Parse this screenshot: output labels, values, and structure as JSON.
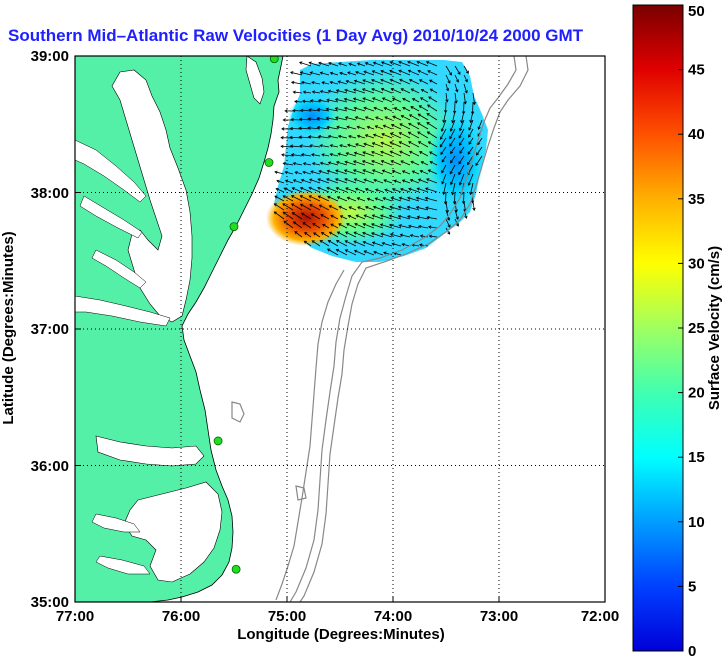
{
  "title": "Southern Mid–Atlantic Raw Velocities (1 Day Avg) 2010/10/24 2000 GMT",
  "axes": {
    "xlabel": "Longitude (Degrees:Minutes)",
    "ylabel": "Latitude (Degrees:Minutes)",
    "x_ticks": [
      "77:00",
      "76:00",
      "75:00",
      "74:00",
      "73:00",
      "72:00"
    ],
    "y_ticks": [
      "39:00",
      "38:00",
      "37:00",
      "36:00",
      "35:00"
    ],
    "x_range": [
      -77.0,
      -72.0
    ],
    "y_range": [
      35.0,
      39.0
    ],
    "grid": "dotted"
  },
  "colorbar": {
    "label": "Surface Velocity (cm/s)",
    "ticks": [
      "0",
      "5",
      "10",
      "15",
      "20",
      "25",
      "30",
      "35",
      "40",
      "45",
      "50"
    ],
    "range": [
      0,
      50
    ],
    "colormap": "jet"
  },
  "colors": {
    "land": "#55f0a8",
    "ocean": "#ffffff",
    "title": "#1f1fff",
    "stations": "#22dd22",
    "contours": "#888888"
  },
  "icons": {
    "station": "green-circle-marker",
    "vector": "black-arrow"
  },
  "map": {
    "stations": [
      {
        "lon": -75.12,
        "lat": 38.98
      },
      {
        "lon": -75.17,
        "lat": 38.22
      },
      {
        "lon": -75.5,
        "lat": 37.75
      },
      {
        "lon": -75.65,
        "lat": 36.18
      },
      {
        "lon": -75.48,
        "lat": 35.24
      }
    ]
  },
  "chart_data": {
    "type": "heatmap",
    "title": "Southern Mid–Atlantic Raw Velocities (1 Day Avg) 2010/10/24 2000 GMT",
    "xlabel": "Longitude (Degrees:Minutes)",
    "ylabel": "Latitude (Degrees:Minutes)",
    "xlim": [
      -77.0,
      -72.0
    ],
    "ylim": [
      35.0,
      39.0
    ],
    "value_label": "Surface Velocity (cm/s)",
    "value_range": [
      0,
      50
    ],
    "regions": [
      {
        "lon": -74.85,
        "lat": 37.83,
        "speed": 45
      },
      {
        "lon": -74.7,
        "lat": 37.75,
        "speed": 33
      },
      {
        "lon": -74.4,
        "lat": 37.95,
        "speed": 24
      },
      {
        "lon": -74.2,
        "lat": 38.35,
        "speed": 20
      },
      {
        "lon": -74.0,
        "lat": 38.6,
        "speed": 18
      },
      {
        "lon": -73.6,
        "lat": 38.3,
        "speed": 13
      },
      {
        "lon": -73.35,
        "lat": 38.05,
        "speed": 9
      },
      {
        "lon": -74.9,
        "lat": 38.55,
        "speed": 12
      }
    ]
  }
}
